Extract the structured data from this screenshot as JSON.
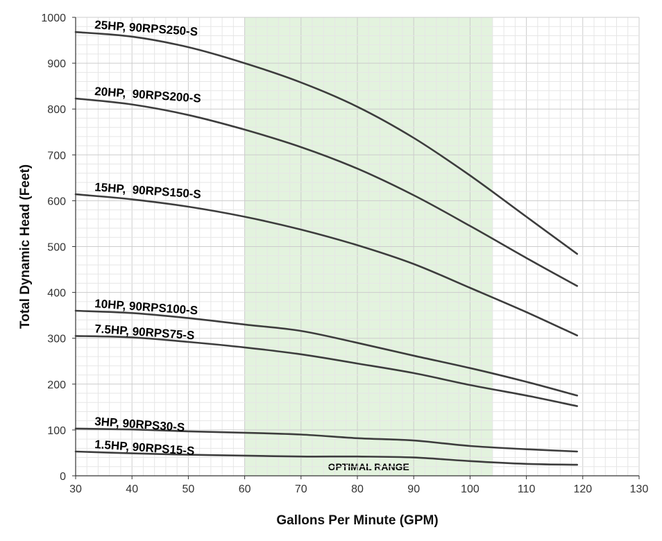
{
  "chart_data": {
    "type": "line",
    "title": "",
    "xlabel": "Gallons Per Minute (GPM)",
    "ylabel": "Total Dynamic Head (Feet)",
    "xlim": [
      30,
      130
    ],
    "ylim": [
      0,
      1000
    ],
    "x_ticks": [
      30,
      40,
      50,
      60,
      70,
      80,
      90,
      100,
      110,
      120,
      130
    ],
    "y_ticks": [
      0,
      100,
      200,
      300,
      400,
      500,
      600,
      700,
      800,
      900,
      1000
    ],
    "grid": true,
    "legend": "none",
    "colors": {
      "line": "#3d3d3d",
      "band_fill": "#e3f3de",
      "grid_minor": "#e6e6e6",
      "grid_major": "#cccccc"
    },
    "shaded_region": {
      "x_start": 60,
      "x_end": 104,
      "label": "OPTIMAL RANGE"
    },
    "series": [
      {
        "name": "25HP, 90RPS250-S",
        "points": [
          [
            30,
            968
          ],
          [
            40,
            958
          ],
          [
            50,
            935
          ],
          [
            60,
            900
          ],
          [
            70,
            858
          ],
          [
            80,
            805
          ],
          [
            90,
            737
          ],
          [
            100,
            655
          ],
          [
            110,
            565
          ],
          [
            119,
            484
          ]
        ]
      },
      {
        "name": "20HP,  90RPS200-S",
        "points": [
          [
            30,
            823
          ],
          [
            40,
            810
          ],
          [
            50,
            787
          ],
          [
            60,
            755
          ],
          [
            70,
            717
          ],
          [
            80,
            670
          ],
          [
            90,
            612
          ],
          [
            100,
            545
          ],
          [
            110,
            475
          ],
          [
            119,
            414
          ]
        ]
      },
      {
        "name": "15HP,  90RPS150-S",
        "points": [
          [
            30,
            614
          ],
          [
            40,
            603
          ],
          [
            50,
            587
          ],
          [
            60,
            565
          ],
          [
            70,
            537
          ],
          [
            80,
            503
          ],
          [
            90,
            462
          ],
          [
            100,
            410
          ],
          [
            110,
            357
          ],
          [
            119,
            306
          ]
        ]
      },
      {
        "name": "10HP, 90RPS100-S",
        "points": [
          [
            30,
            360
          ],
          [
            40,
            355
          ],
          [
            50,
            344
          ],
          [
            60,
            330
          ],
          [
            70,
            316
          ],
          [
            80,
            290
          ],
          [
            90,
            262
          ],
          [
            100,
            235
          ],
          [
            110,
            205
          ],
          [
            119,
            175
          ]
        ]
      },
      {
        "name": "7.5HP, 90RPS75-S",
        "points": [
          [
            30,
            305
          ],
          [
            40,
            302
          ],
          [
            50,
            292
          ],
          [
            60,
            280
          ],
          [
            70,
            265
          ],
          [
            80,
            245
          ],
          [
            90,
            224
          ],
          [
            100,
            198
          ],
          [
            110,
            175
          ],
          [
            119,
            152
          ]
        ]
      },
      {
        "name": "3HP, 90RPS30-S",
        "points": [
          [
            30,
            103
          ],
          [
            40,
            101
          ],
          [
            50,
            97
          ],
          [
            60,
            94
          ],
          [
            70,
            90
          ],
          [
            80,
            82
          ],
          [
            90,
            77
          ],
          [
            100,
            65
          ],
          [
            110,
            58
          ],
          [
            119,
            53
          ]
        ]
      },
      {
        "name": "1.5HP, 90RPS15-S",
        "points": [
          [
            30,
            53
          ],
          [
            40,
            49
          ],
          [
            50,
            46
          ],
          [
            60,
            44
          ],
          [
            70,
            42
          ],
          [
            80,
            42
          ],
          [
            90,
            40
          ],
          [
            100,
            32
          ],
          [
            110,
            26
          ],
          [
            119,
            24
          ]
        ]
      }
    ]
  }
}
